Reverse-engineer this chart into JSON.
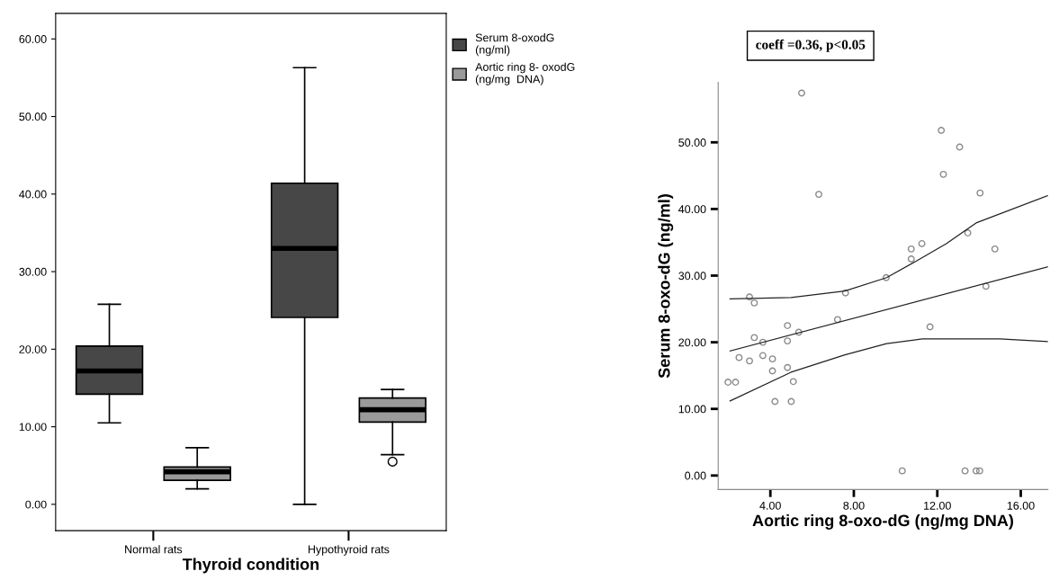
{
  "chart_data": [
    {
      "type": "box",
      "xlabel": "Thyroid condition",
      "categories": [
        "Normal rats",
        "Hypothyroid rats"
      ],
      "series": [
        {
          "name": "Serum 8-oxodG\n(ng/ml)",
          "color": "#474747",
          "boxes": [
            {
              "low": 10.5,
              "q1": 14.2,
              "median": 17.2,
              "q3": 20.4,
              "high": 25.8
            },
            {
              "low": 0,
              "q1": 24.1,
              "median": 33.0,
              "q3": 41.4,
              "high": 56.3
            }
          ]
        },
        {
          "name": "Aortic ring 8- oxodG\n(ng/mg  DNA)",
          "color": "#9a9a9a",
          "boxes": [
            {
              "low": 2.0,
              "q1": 3.1,
              "median": 4.2,
              "q3": 4.8,
              "high": 7.3
            },
            {
              "low": 6.4,
              "q1": 10.6,
              "median": 12.2,
              "q3": 13.7,
              "high": 14.8,
              "outliers": [
                5.5
              ]
            }
          ]
        }
      ],
      "ylim": [
        -3.4,
        63.3
      ],
      "yticks": [
        {
          "value": 0,
          "label": "0.00"
        },
        {
          "value": 10,
          "label": "10.00"
        },
        {
          "value": 20,
          "label": "20.00"
        },
        {
          "value": 30,
          "label": "30.00"
        },
        {
          "value": 40,
          "label": "40.00"
        },
        {
          "value": 50,
          "label": "50.00"
        },
        {
          "value": 60,
          "label": "60.00"
        }
      ],
      "grid": false,
      "legend": "right"
    },
    {
      "type": "scatter",
      "xlabel": "Aortic ring 8-oxo-dG (ng/mg DNA)",
      "ylabel": "Serum 8-oxo-dG (ng/ml)",
      "annotations": [
        "coeff =0.36, p<0.05"
      ],
      "series": [
        {
          "type": "scatter",
          "color": "#8a8a8a",
          "marker": "circle",
          "x": [
            5.5,
            12.19,
            13.07,
            12.29,
            14.05,
            6.32,
            13.46,
            14.76,
            11.26,
            10.75,
            10.75,
            9.55,
            14.33,
            7.6,
            7.22,
            11.65,
            3.0,
            3.23,
            4.82,
            4.82,
            5.36,
            3.23,
            3.64,
            2.5,
            3.0,
            3.64,
            4.1,
            4.1,
            4.82,
            5.1,
            1.97,
            2.33,
            4.22,
            5.0,
            10.32,
            13.33,
            13.86,
            14.03
          ],
          "values": [
            57.4,
            51.8,
            49.3,
            45.2,
            42.4,
            42.2,
            36.4,
            34.0,
            34.8,
            34.0,
            32.5,
            29.7,
            28.4,
            27.4,
            23.4,
            22.3,
            26.8,
            25.9,
            22.5,
            20.2,
            21.5,
            20.7,
            20.0,
            17.7,
            17.2,
            18.0,
            17.5,
            15.7,
            16.2,
            14.1,
            14.0,
            14.0,
            11.1,
            11.1,
            0.7,
            0.7,
            0.7,
            0.7
          ]
        },
        {
          "type": "line",
          "color": "#222222",
          "x": [
            2.07,
            4.99,
            7.57,
            9.57,
            11.0,
            12.43,
            13.86,
            17.29
          ],
          "values": [
            26.5,
            26.7,
            27.7,
            29.7,
            32.2,
            34.8,
            37.9,
            42.0
          ]
        },
        {
          "type": "line",
          "color": "#222222",
          "x": [
            2.07,
            17.29
          ],
          "values": [
            18.7,
            31.3
          ]
        },
        {
          "type": "line",
          "color": "#222222",
          "x": [
            2.07,
            4.99,
            7.57,
            9.57,
            11.28,
            15.0,
            17.29
          ],
          "values": [
            11.2,
            15.5,
            18.1,
            19.8,
            20.5,
            20.5,
            20.1
          ]
        }
      ],
      "xlim": [
        1.5,
        17.3
      ],
      "ylim": [
        -2.1,
        59.0
      ],
      "xticks": [
        {
          "value": 4,
          "label": "4.00"
        },
        {
          "value": 8,
          "label": "8.00"
        },
        {
          "value": 12,
          "label": "12.00"
        },
        {
          "value": 16,
          "label": "16.00"
        }
      ],
      "yticks": [
        {
          "value": 0,
          "label": "0.00"
        },
        {
          "value": 10,
          "label": "10.00"
        },
        {
          "value": 20,
          "label": "20.00"
        },
        {
          "value": 30,
          "label": "30.00"
        },
        {
          "value": 40,
          "label": "40.00"
        },
        {
          "value": 50,
          "label": "50.00"
        }
      ],
      "grid": false
    }
  ]
}
